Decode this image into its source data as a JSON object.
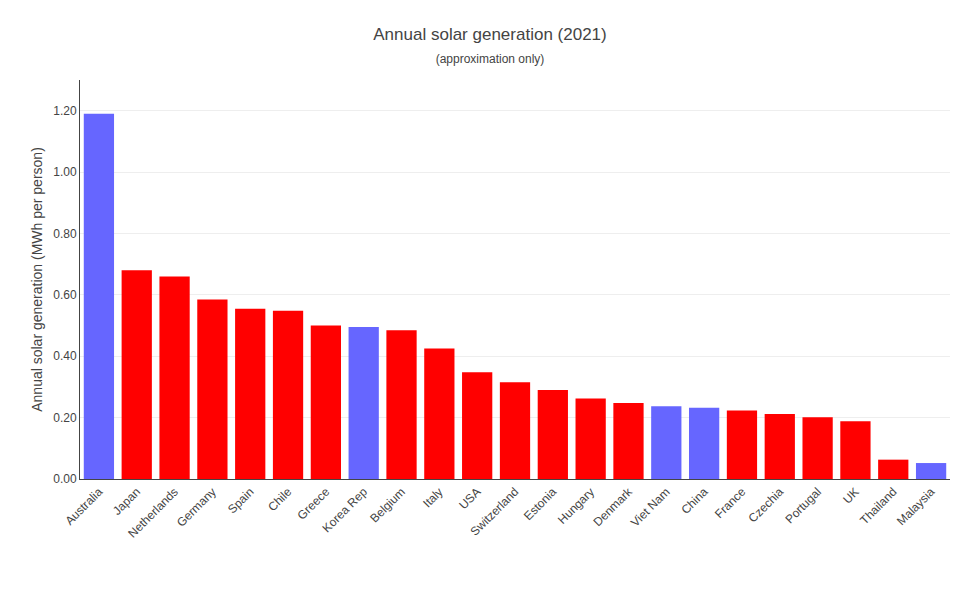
{
  "chart_data": {
    "type": "bar",
    "title": "Annual solar generation (2021)",
    "subtitle": "(approximation only)",
    "y_label": "Annual solar generation (MWh per person)",
    "categories": [
      "Australia",
      "Japan",
      "Netherlands",
      "Germany",
      "Spain",
      "Chile",
      "Greece",
      "Korea Rep",
      "Belgium",
      "Italy",
      "USA",
      "Switzerland",
      "Estonia",
      "Hungary",
      "Denmark",
      "Viet Nam",
      "China",
      "France",
      "Czechia",
      "Portugal",
      "UK",
      "Thailand",
      "Malaysia"
    ],
    "values": [
      1.19,
      0.68,
      0.66,
      0.585,
      0.555,
      0.548,
      0.5,
      0.495,
      0.485,
      0.425,
      0.348,
      0.315,
      0.29,
      0.262,
      0.248,
      0.237,
      0.232,
      0.223,
      0.212,
      0.201,
      0.188,
      0.063,
      0.052
    ],
    "colors": [
      "#6666ff",
      "#ff0000",
      "#ff0000",
      "#ff0000",
      "#ff0000",
      "#ff0000",
      "#ff0000",
      "#6666ff",
      "#ff0000",
      "#ff0000",
      "#ff0000",
      "#ff0000",
      "#ff0000",
      "#ff0000",
      "#ff0000",
      "#6666ff",
      "#6666ff",
      "#ff0000",
      "#ff0000",
      "#ff0000",
      "#ff0000",
      "#ff0000",
      "#6666ff"
    ],
    "ylim": [
      0,
      1.3
    ],
    "yticks": [
      {
        "value": 0.0,
        "label": "0.00"
      },
      {
        "value": 0.2,
        "label": "0.20"
      },
      {
        "value": 0.4,
        "label": "0.40"
      },
      {
        "value": 0.6,
        "label": "0.60"
      },
      {
        "value": 0.8,
        "label": "0.80"
      },
      {
        "value": 1.0,
        "label": "1.00"
      },
      {
        "value": 1.2,
        "label": "1.20"
      }
    ],
    "grid": true
  }
}
